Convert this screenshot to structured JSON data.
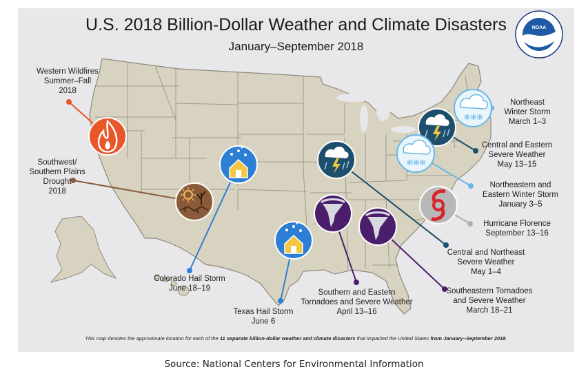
{
  "title": "U.S. 2018 Billion-Dollar Weather and Climate Disasters",
  "subtitle": "January–September 2018",
  "logo_text": "NOAA",
  "colors": {
    "panel": "#e8e7ea",
    "land": "#d8d3c0",
    "state_line": "#9b9b8c",
    "wildfire": "#e8562a",
    "drought": "#8a5a3b",
    "hail": "#2d7fd6",
    "tornado": "#4a1e6b",
    "severe": "#1d4e6b",
    "winter": "#66b8e8",
    "hurricane": "#b0b0b0"
  },
  "events": [
    {
      "name": "Western Wildfires",
      "dates": "Summer–Fall 2018",
      "lines": [
        "Western Wildfires",
        "Summer–Fall",
        "2018"
      ],
      "icon": "wildfire-icon"
    },
    {
      "name": "Southwest/ Southern Plains Drought",
      "dates": "2018",
      "lines": [
        "Southwest/",
        "Southern Plains",
        "Drought",
        "2018"
      ],
      "icon": "drought-icon"
    },
    {
      "name": "Colorado Hail Storm",
      "dates": "June 18–19",
      "lines": [
        "Colorado Hail Storm",
        "June 18–19"
      ],
      "icon": "hail-icon"
    },
    {
      "name": "Texas Hail Storm",
      "dates": "June 6",
      "lines": [
        "Texas Hail Storm",
        "June 6"
      ],
      "icon": "hail-icon"
    },
    {
      "name": "Southern and Eastern Tornadoes and Severe Weather",
      "dates": "April 13–16",
      "lines": [
        "Southern and Eastern",
        "Tornadoes and Severe Weather",
        "April 13–16"
      ],
      "icon": "tornado-icon"
    },
    {
      "name": "Southeastern Tornadoes and Severe Weather",
      "dates": "March 18–21",
      "lines": [
        "Southeastern Tornadoes",
        "and Severe Weather",
        "March 18–21"
      ],
      "icon": "tornado-icon"
    },
    {
      "name": "Central and Northeast Severe Weather",
      "dates": "May 1–4",
      "lines": [
        "Central and Northeast",
        "Severe Weather",
        "May 1–4"
      ],
      "icon": "severe-storm-icon"
    },
    {
      "name": "Hurricane Florence",
      "dates": "September 13–16",
      "lines": [
        "Hurricane Florence",
        "September 13–16"
      ],
      "icon": "hurricane-icon"
    },
    {
      "name": "Northeastern and Eastern Winter Storm",
      "dates": "January 3–5",
      "lines": [
        "Northeastern and",
        "Eastern Winter Storm",
        "January 3–5"
      ],
      "icon": "winter-storm-icon"
    },
    {
      "name": "Central and Eastern Severe Weather",
      "dates": "May 13–15",
      "lines": [
        "Central and Eastern",
        "Severe Weather",
        "May 13–15"
      ],
      "icon": "severe-storm-icon"
    },
    {
      "name": "Northeast Winter Storm",
      "dates": "March 1–3",
      "lines": [
        "Northeast",
        "Winter Storm",
        "March 1–3"
      ],
      "icon": "winter-storm-icon"
    }
  ],
  "footnote": {
    "pre": "This map denotes the approximate location for each of the ",
    "bold1": "11 separate billion-dollar weather and climate disasters",
    "mid": " that impacted the United States ",
    "bold2": "from January–September 2018",
    "post": "."
  },
  "source": "Source: National Centers for Environmental Information"
}
